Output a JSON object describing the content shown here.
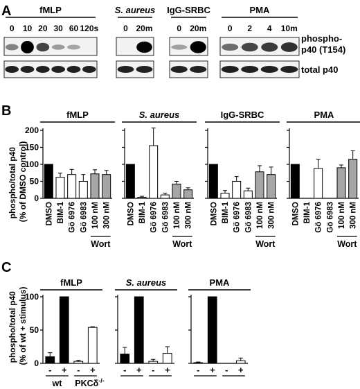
{
  "panel_labels": {
    "a": "A",
    "b": "B",
    "c": "C"
  },
  "panel_a": {
    "groups": [
      {
        "name": "fMLP",
        "italic": false,
        "times": [
          "0",
          "10",
          "20",
          "30",
          "60",
          "120s"
        ],
        "bands_top": [
          0.25,
          1.0,
          0.55,
          0.12,
          0.08,
          0.0
        ]
      },
      {
        "name": "S. aureus",
        "italic": true,
        "times": [
          "0",
          "20m"
        ],
        "bands_top": [
          0.0,
          0.85
        ]
      },
      {
        "name": "IgG-SRBC",
        "italic": false,
        "times": [
          "0",
          "20m"
        ],
        "bands_top": [
          0.1,
          0.95
        ]
      },
      {
        "name": "PMA",
        "italic": false,
        "times": [
          "0",
          "2",
          "4",
          "10m"
        ],
        "bands_top": [
          0.35,
          0.55,
          0.6,
          0.65
        ]
      }
    ],
    "row_labels": {
      "phospho_line1": "phospho-",
      "phospho_line2": "p40 (T154)",
      "total": "total p40"
    }
  },
  "chart_data": [
    {
      "type": "bar",
      "panel": "B",
      "ylabel": "phospho/total p40 (% of DMSO control)",
      "ylim": [
        0,
        200
      ],
      "yticks": [
        0,
        50,
        100,
        150,
        200
      ],
      "categories": [
        "DMSO",
        "BIM-1",
        "Gö 6976",
        "Gö 6983",
        "100 nM",
        "300 nM"
      ],
      "bracket_label": "Wort",
      "bar_colors": [
        "#000000",
        "#ffffff",
        "#ffffff",
        "#ffffff",
        "#a6a6a6",
        "#a6a6a6"
      ],
      "series": [
        {
          "name": "fMLP",
          "italic": false,
          "values": [
            100,
            62,
            70,
            50,
            72,
            70
          ],
          "errors": [
            0,
            12,
            15,
            20,
            12,
            12
          ]
        },
        {
          "name": "S. aureus",
          "italic": true,
          "values": [
            100,
            3,
            155,
            10,
            42,
            25
          ],
          "errors": [
            0,
            3,
            52,
            5,
            8,
            6
          ]
        },
        {
          "name": "IgG-SRBC",
          "italic": false,
          "values": [
            100,
            15,
            50,
            22,
            78,
            70
          ],
          "errors": [
            0,
            8,
            14,
            8,
            18,
            22
          ]
        },
        {
          "name": "PMA",
          "italic": false,
          "values": [
            100,
            0,
            88,
            0,
            90,
            115
          ],
          "errors": [
            0,
            0,
            27,
            0,
            8,
            25
          ]
        }
      ]
    },
    {
      "type": "bar",
      "panel": "C",
      "ylabel": "phospho/total p40 (% of wt + stimulus)",
      "ylim": [
        0,
        100
      ],
      "yticks": [
        0,
        50,
        100
      ],
      "signs": [
        "-",
        "+",
        "-",
        "+"
      ],
      "genotypes": [
        "wt",
        "PKCδ-/-"
      ],
      "geno_label_wt": "wt",
      "geno_label_ko": "PKCδ",
      "geno_label_ko_sup": "-/-",
      "bar_colors": [
        "#000000",
        "#000000",
        "#ffffff",
        "#ffffff"
      ],
      "series": [
        {
          "name": "fMLP",
          "italic": false,
          "values": [
            10,
            100,
            3,
            54
          ],
          "errors": [
            6,
            0,
            1.5,
            1
          ]
        },
        {
          "name": "S. aureus",
          "italic": true,
          "values": [
            14,
            100,
            3,
            15
          ],
          "errors": [
            10,
            0,
            3,
            10
          ]
        },
        {
          "name": "PMA",
          "italic": false,
          "values": [
            1,
            100,
            0,
            4
          ],
          "errors": [
            1,
            0,
            0,
            4
          ]
        }
      ]
    }
  ]
}
